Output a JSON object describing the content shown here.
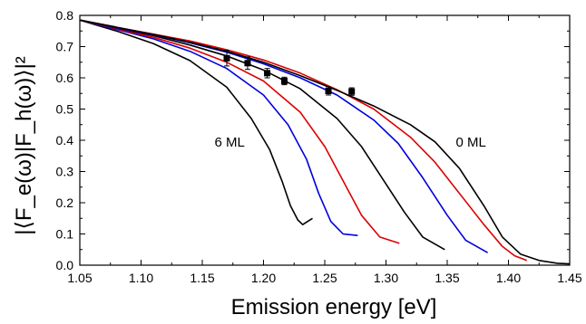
{
  "chart_data": {
    "type": "line",
    "xlabel": "Emission energy [eV]",
    "ylabel": "|⟨F_e(ω)|F_h(ω)⟩|²",
    "xlim": [
      1.05,
      1.45
    ],
    "ylim": [
      0.0,
      0.8
    ],
    "xticks": [
      "1.05",
      "1.10",
      "1.15",
      "1.20",
      "1.25",
      "1.30",
      "1.35",
      "1.40",
      "1.45"
    ],
    "yticks": [
      "0.0",
      "0.1",
      "0.2",
      "0.3",
      "0.4",
      "0.5",
      "0.6",
      "0.7",
      "0.8"
    ],
    "grid": false,
    "annotations": [
      {
        "text": "6 ML",
        "x": 1.16,
        "y": 0.38
      },
      {
        "text": "0 ML",
        "x": 1.357,
        "y": 0.38
      }
    ],
    "series": [
      {
        "color": "#000000",
        "x": [
          1.05,
          1.08,
          1.11,
          1.14,
          1.17,
          1.19,
          1.205,
          1.215,
          1.222,
          1.228,
          1.232,
          1.236,
          1.24
        ],
        "y": [
          0.785,
          0.75,
          0.71,
          0.655,
          0.57,
          0.47,
          0.37,
          0.27,
          0.19,
          0.145,
          0.13,
          0.14,
          0.15
        ]
      },
      {
        "color": "#0000dd",
        "x": [
          1.05,
          1.08,
          1.11,
          1.14,
          1.17,
          1.2,
          1.22,
          1.235,
          1.245,
          1.255,
          1.265,
          1.277
        ],
        "y": [
          0.785,
          0.755,
          0.725,
          0.685,
          0.63,
          0.545,
          0.45,
          0.34,
          0.23,
          0.14,
          0.1,
          0.095
        ]
      },
      {
        "color": "#dd0000",
        "x": [
          1.05,
          1.08,
          1.11,
          1.14,
          1.17,
          1.2,
          1.23,
          1.25,
          1.265,
          1.28,
          1.295,
          1.311
        ],
        "y": [
          0.785,
          0.757,
          0.73,
          0.695,
          0.65,
          0.59,
          0.49,
          0.38,
          0.27,
          0.16,
          0.09,
          0.07
        ]
      },
      {
        "color": "#000000",
        "x": [
          1.05,
          1.08,
          1.11,
          1.14,
          1.17,
          1.2,
          1.23,
          1.26,
          1.28,
          1.3,
          1.315,
          1.33,
          1.348
        ],
        "y": [
          0.785,
          0.759,
          0.735,
          0.705,
          0.67,
          0.625,
          0.565,
          0.47,
          0.38,
          0.26,
          0.17,
          0.09,
          0.05
        ]
      },
      {
        "color": "#0000dd",
        "x": [
          1.05,
          1.08,
          1.11,
          1.14,
          1.17,
          1.2,
          1.23,
          1.26,
          1.29,
          1.31,
          1.33,
          1.35,
          1.365,
          1.383
        ],
        "y": [
          0.785,
          0.76,
          0.738,
          0.712,
          0.682,
          0.645,
          0.6,
          0.545,
          0.465,
          0.39,
          0.28,
          0.16,
          0.08,
          0.04
        ]
      },
      {
        "color": "#dd0000",
        "x": [
          1.05,
          1.08,
          1.11,
          1.14,
          1.17,
          1.2,
          1.23,
          1.26,
          1.29,
          1.32,
          1.34,
          1.36,
          1.38,
          1.395,
          1.405,
          1.415
        ],
        "y": [
          0.785,
          0.762,
          0.74,
          0.718,
          0.69,
          0.657,
          0.615,
          0.562,
          0.5,
          0.41,
          0.33,
          0.23,
          0.13,
          0.06,
          0.03,
          0.015
        ]
      },
      {
        "color": "#000000",
        "x": [
          1.05,
          1.08,
          1.11,
          1.14,
          1.17,
          1.2,
          1.23,
          1.26,
          1.29,
          1.32,
          1.34,
          1.36,
          1.38,
          1.395,
          1.41,
          1.425,
          1.44,
          1.45
        ],
        "y": [
          0.785,
          0.762,
          0.739,
          0.714,
          0.685,
          0.65,
          0.607,
          0.56,
          0.51,
          0.45,
          0.395,
          0.31,
          0.19,
          0.09,
          0.035,
          0.015,
          0.006,
          0.004
        ]
      }
    ],
    "points": {
      "color": "#000000",
      "x": [
        1.17,
        1.187,
        1.203,
        1.217,
        1.253,
        1.272
      ],
      "y": [
        0.663,
        0.647,
        0.615,
        0.59,
        0.558,
        0.556
      ],
      "err": [
        0.025,
        0.02,
        0.015,
        0.012,
        0.013,
        0.012
      ]
    }
  }
}
